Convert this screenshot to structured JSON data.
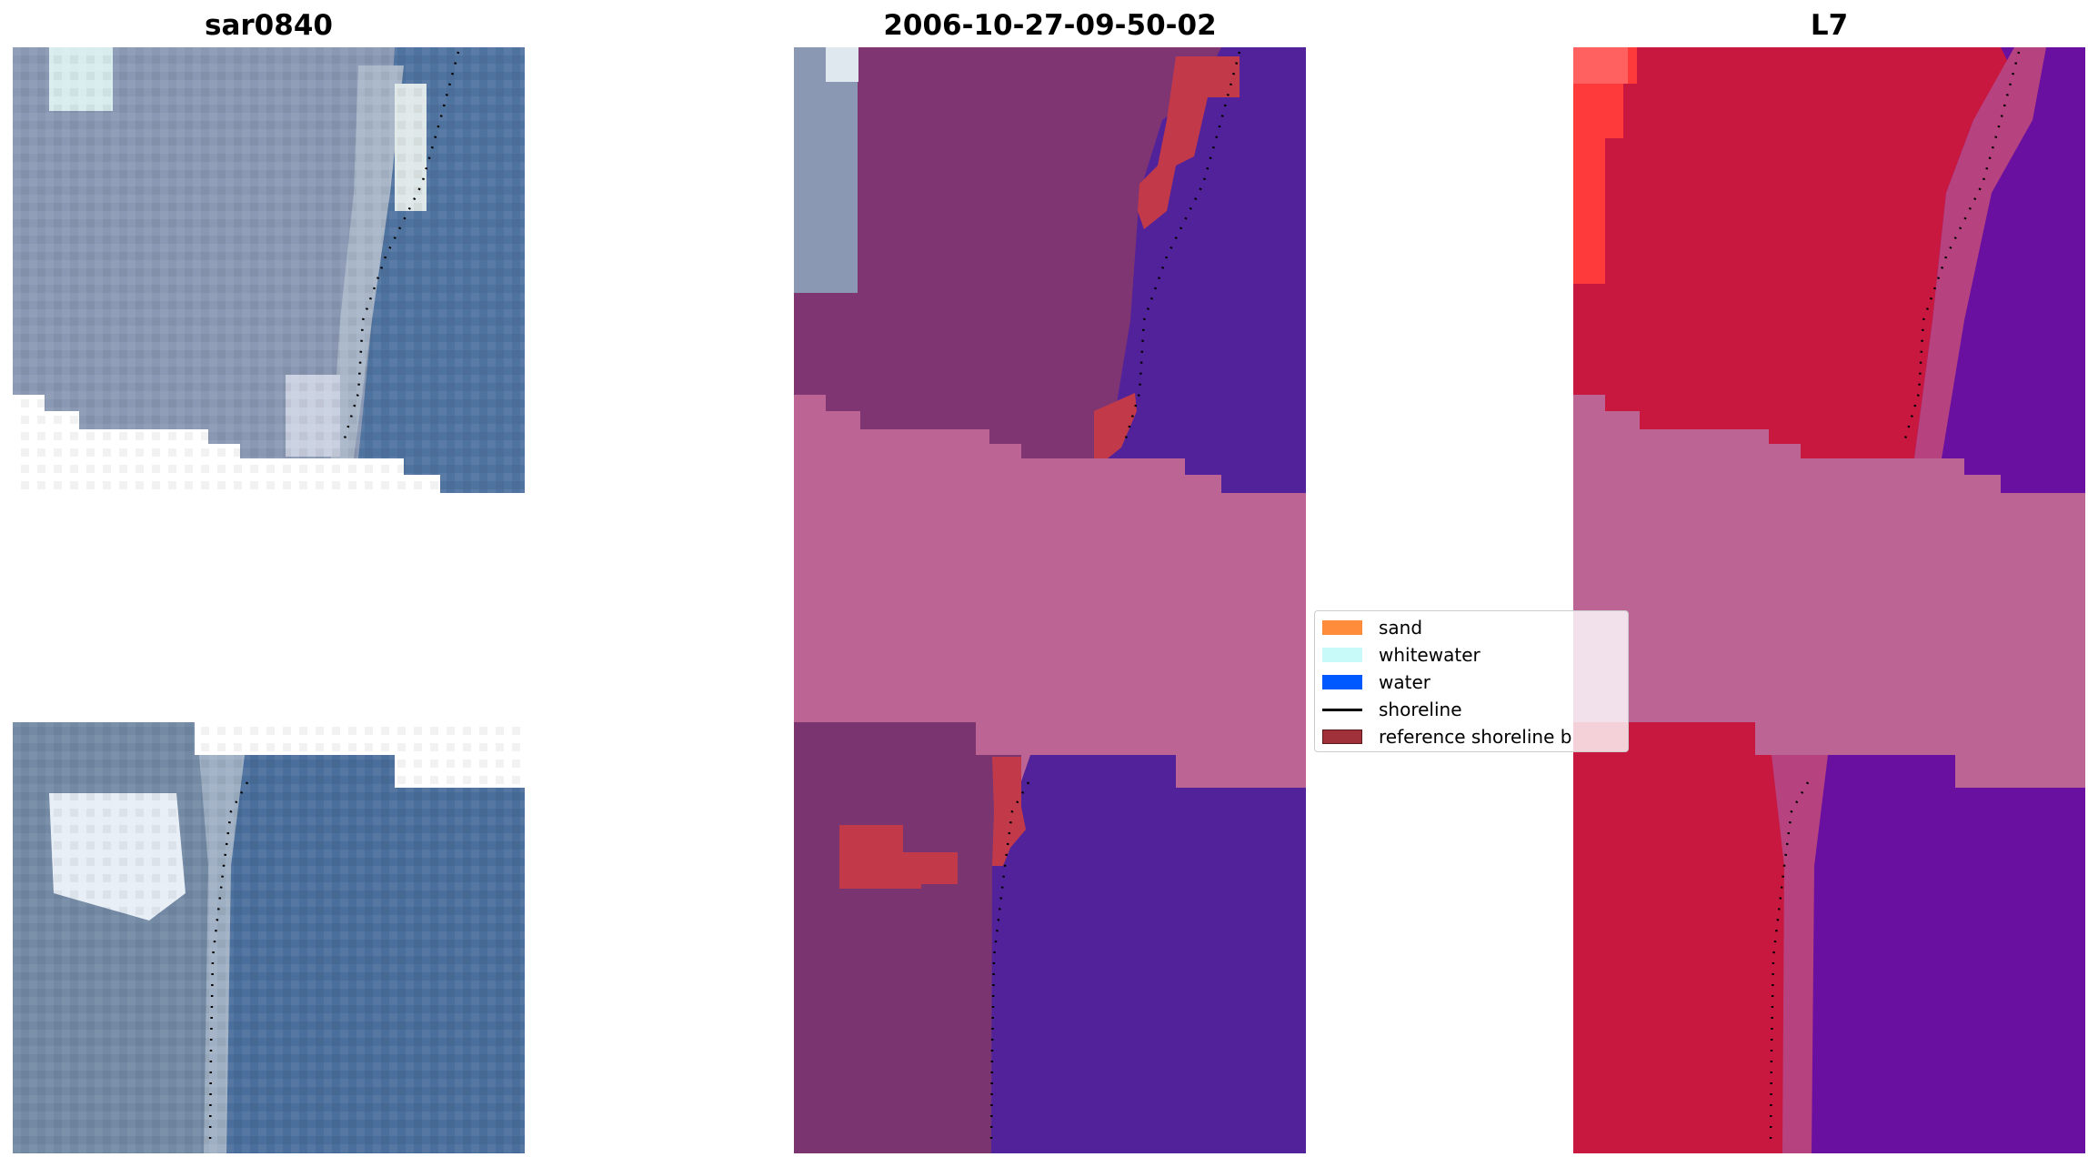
{
  "titles": {
    "left": "sar0840",
    "center": "2006-10-27-09-50-02",
    "right": "L7"
  },
  "legend": {
    "items": [
      {
        "label": "sand",
        "color": "#ff8c3a",
        "kind": "patch"
      },
      {
        "label": "whitewater",
        "color": "#c8fafa",
        "kind": "patch"
      },
      {
        "label": "water",
        "color": "#0059ff",
        "kind": "patch"
      },
      {
        "label": "shoreline",
        "color": "#000000",
        "kind": "line"
      },
      {
        "label": "reference shoreline b",
        "color": "#a0303a",
        "kind": "patch"
      }
    ]
  },
  "colors": {
    "rgb_land": "#8a98b3",
    "rgb_water": "#4a6f9c",
    "rgb_whitewater": "#e6eef4",
    "class_land": "#7f3572",
    "class_water": "#52229a",
    "class_nodata": "#bc6494",
    "class_reference": "#c23a4a",
    "nir_land": "#c81840",
    "nir_water": "#6a10a0",
    "nir_bright": "#ff3a3a",
    "nodata": "#bc6494",
    "shoreline": "#000000"
  }
}
